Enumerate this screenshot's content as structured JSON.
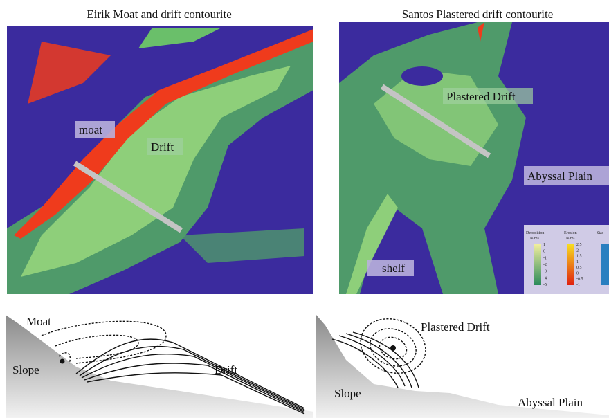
{
  "figure": {
    "top_left": {
      "title": "Eirik Moat and drift contourite",
      "labels": [
        "moat",
        "Drift"
      ]
    },
    "top_right": {
      "title": "Santos Plastered drift contourite",
      "labels": [
        "Plastered Drift",
        "Abyssal Plain",
        "shelf"
      ],
      "legend": {
        "deposition": {
          "title": "Deposition",
          "unit": "N/ms",
          "ticks": [
            "1",
            "0",
            "-1",
            "-2",
            "-3",
            "-4",
            "-5"
          ]
        },
        "erosion": {
          "title": "Erosion",
          "unit": "N/m²",
          "ticks": [
            "2.5",
            "2",
            "1.5",
            "1",
            "0.5",
            "0",
            "-0.5",
            "-1"
          ]
        },
        "stasis": {
          "title": "Stas"
        }
      }
    },
    "bottom_left": {
      "labels": [
        "Moat",
        "Slope",
        "Drift"
      ]
    },
    "bottom_right": {
      "labels": [
        "Plastered Drift",
        "Slope",
        "Abyssal Plain"
      ]
    }
  }
}
